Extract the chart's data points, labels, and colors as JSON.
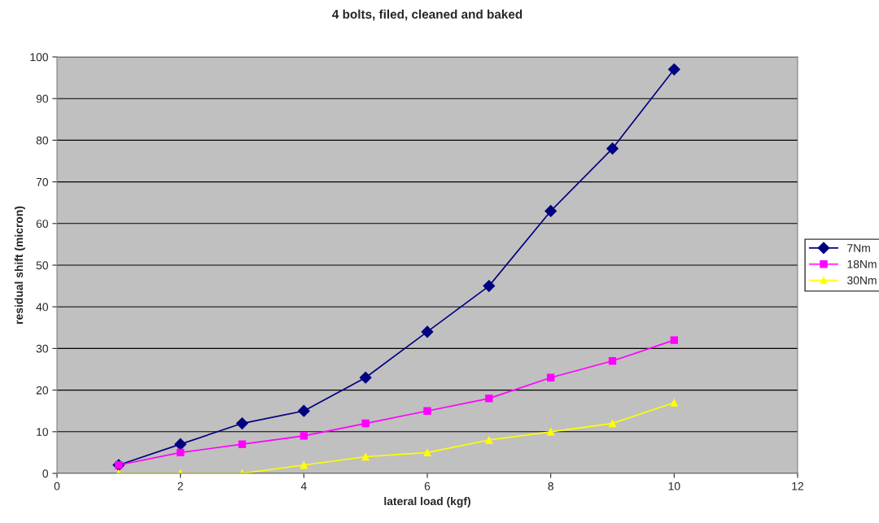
{
  "chart_data": {
    "type": "line",
    "title": "4 bolts, filed, cleaned and baked",
    "xlabel": "lateral load (kgf)",
    "ylabel": "residual shift (micron)",
    "x": [
      1,
      2,
      3,
      4,
      5,
      6,
      7,
      8,
      9,
      10
    ],
    "series": [
      {
        "name": "7Nm",
        "color": "#000080",
        "marker": "diamond",
        "values": [
          2,
          7,
          12,
          15,
          23,
          34,
          45,
          63,
          78,
          97
        ]
      },
      {
        "name": "18Nm",
        "color": "#ff00ff",
        "marker": "square",
        "values": [
          2,
          5,
          7,
          9,
          12,
          15,
          18,
          23,
          27,
          32
        ]
      },
      {
        "name": "30Nm",
        "color": "#ffff00",
        "marker": "triangle",
        "values": [
          0,
          0,
          0,
          2,
          4,
          5,
          8,
          10,
          12,
          17
        ]
      }
    ],
    "xlim": [
      0,
      12
    ],
    "xticks": [
      0,
      2,
      4,
      6,
      8,
      10,
      12
    ],
    "ylim": [
      0,
      100
    ],
    "yticks": [
      0,
      10,
      20,
      30,
      40,
      50,
      60,
      70,
      80,
      90,
      100
    ],
    "grid": "y",
    "legend": "right",
    "line_style": "solid"
  }
}
